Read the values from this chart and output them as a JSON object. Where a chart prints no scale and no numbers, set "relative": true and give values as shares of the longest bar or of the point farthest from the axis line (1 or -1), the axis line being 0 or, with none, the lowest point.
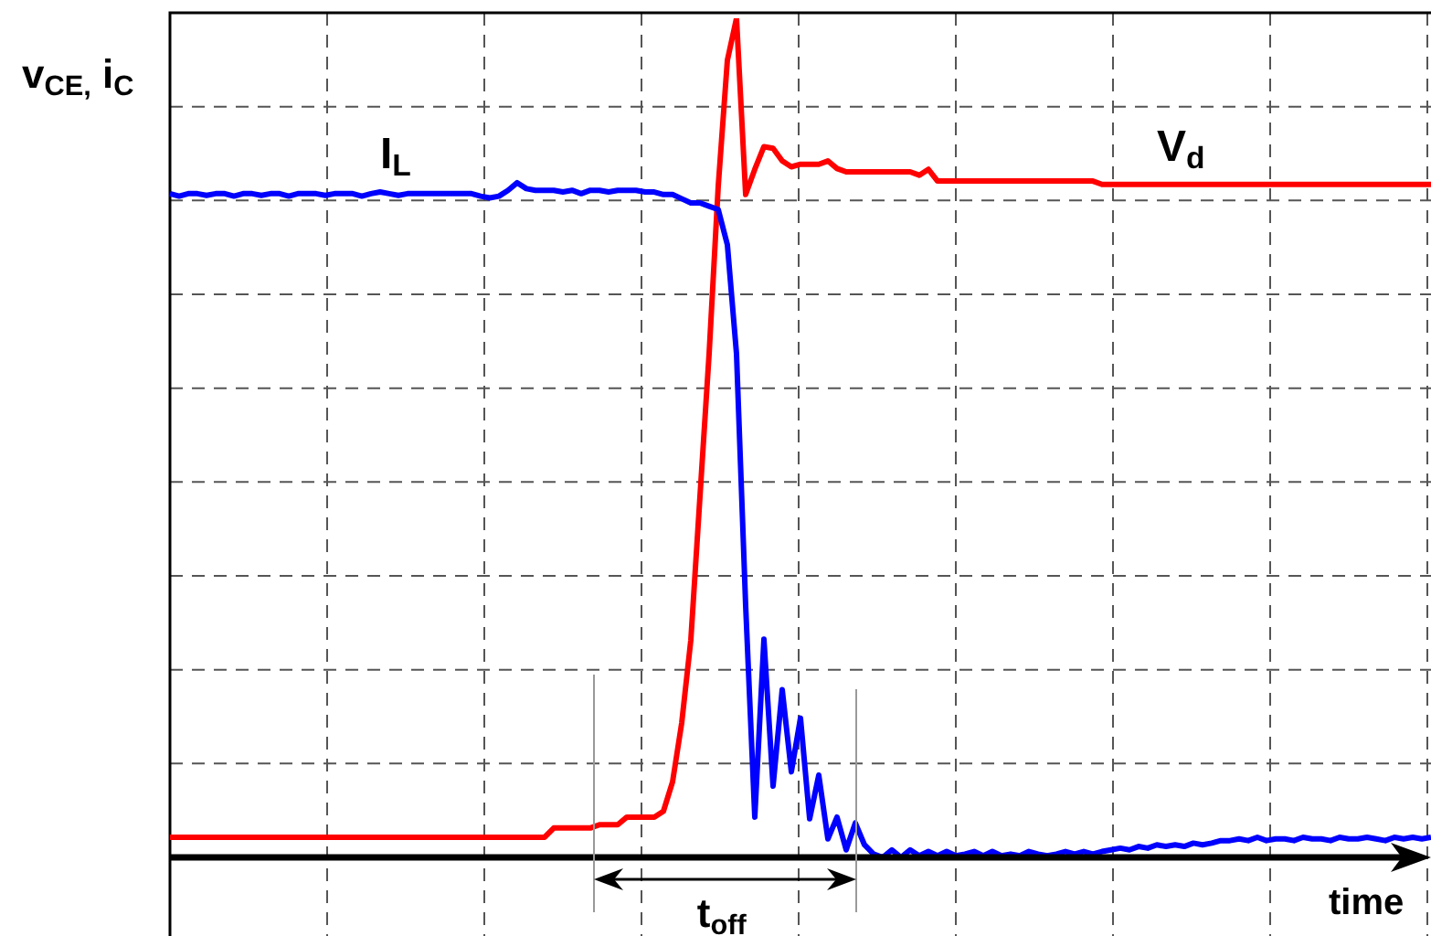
{
  "chart_data": {
    "type": "line",
    "relative": true,
    "grid": true,
    "tick_labels": false,
    "legend": false,
    "marker": "none",
    "ylabel": "v$_{CE,}$ i$_{C}$",
    "xlabel": "time",
    "annotations": [
      "t$_{off}$"
    ],
    "categories": [
      null,
      null,
      null,
      null,
      null,
      null,
      null,
      null,
      null,
      null,
      null,
      null,
      null,
      null,
      null,
      null,
      null,
      null,
      null,
      null,
      null,
      null,
      null,
      null,
      null,
      null,
      null,
      null,
      null,
      null,
      null,
      null,
      null,
      null,
      null,
      null,
      null,
      null,
      null,
      null,
      null,
      null,
      null,
      null,
      null,
      null,
      null,
      null,
      null,
      null,
      null,
      null,
      null,
      null,
      null,
      null,
      null,
      null,
      null,
      null,
      null,
      null,
      null,
      null,
      null,
      null,
      null,
      null,
      null,
      null,
      null,
      null,
      null,
      null,
      null,
      null,
      null,
      null,
      null,
      null,
      null,
      null,
      null,
      null,
      null,
      null,
      null,
      null,
      null,
      null,
      null,
      null,
      null,
      null,
      null,
      null,
      null,
      null,
      null,
      null,
      null,
      null,
      null,
      null,
      null,
      null,
      null,
      null,
      null,
      null,
      null,
      null,
      null,
      null,
      null,
      null,
      null,
      null,
      null,
      null,
      null,
      null,
      null,
      null,
      null,
      null,
      null,
      null,
      null,
      null,
      null,
      null,
      null,
      null,
      null,
      null,
      null,
      null,
      null
    ],
    "series": [
      {
        "name": "I$_{L}$",
        "color": "#0000ff",
        "values": [
          0.791,
          0.788,
          0.791,
          0.791,
          0.789,
          0.791,
          0.791,
          0.788,
          0.791,
          0.791,
          0.789,
          0.791,
          0.791,
          0.788,
          0.791,
          0.791,
          0.791,
          0.789,
          0.791,
          0.791,
          0.791,
          0.788,
          0.791,
          0.793,
          0.791,
          0.789,
          0.791,
          0.791,
          0.791,
          0.791,
          0.791,
          0.791,
          0.791,
          0.791,
          0.788,
          0.786,
          0.788,
          0.795,
          0.804,
          0.797,
          0.795,
          0.795,
          0.795,
          0.793,
          0.795,
          0.791,
          0.795,
          0.795,
          0.793,
          0.795,
          0.795,
          0.795,
          0.793,
          0.793,
          0.79,
          0.79,
          0.785,
          0.78,
          0.78,
          0.776,
          0.772,
          0.73,
          0.6,
          0.3,
          0.048,
          0.26,
          0.085,
          0.2,
          0.102,
          0.166,
          0.046,
          0.098,
          0.022,
          0.048,
          0.009,
          0.041,
          0.015,
          0.004,
          0,
          0.009,
          0,
          0.009,
          0.002,
          0.007,
          0.002,
          0.007,
          0.002,
          0.004,
          0.007,
          0.002,
          0.007,
          0.002,
          0.004,
          0.002,
          0.007,
          0.004,
          0.002,
          0.004,
          0.007,
          0.004,
          0.007,
          0.004,
          0.007,
          0.009,
          0.011,
          0.009,
          0.013,
          0.011,
          0.015,
          0.013,
          0.015,
          0.013,
          0.017,
          0.015,
          0.017,
          0.02,
          0.02,
          0.022,
          0.02,
          0.024,
          0.02,
          0.022,
          0.022,
          0.02,
          0.024,
          0.022,
          0.022,
          0.02,
          0.024,
          0.022,
          0.022,
          0.024,
          0.022,
          0.02,
          0.024,
          0.022,
          0.024,
          0.022,
          0.024
        ]
      },
      {
        "name": "V$_{d}$",
        "color": "#ff0000",
        "values": [
          0.024,
          0.024,
          0.024,
          0.024,
          0.024,
          0.024,
          0.024,
          0.024,
          0.024,
          0.024,
          0.024,
          0.024,
          0.024,
          0.024,
          0.024,
          0.024,
          0.024,
          0.024,
          0.024,
          0.024,
          0.024,
          0.024,
          0.024,
          0.024,
          0.024,
          0.024,
          0.024,
          0.024,
          0.024,
          0.024,
          0.024,
          0.024,
          0.024,
          0.024,
          0.024,
          0.024,
          0.024,
          0.024,
          0.024,
          0.024,
          0.024,
          0.024,
          0.035,
          0.035,
          0.035,
          0.035,
          0.035,
          0.039,
          0.039,
          0.039,
          0.048,
          0.048,
          0.048,
          0.048,
          0.055,
          0.09,
          0.16,
          0.259,
          0.43,
          0.6,
          0.8,
          0.95,
          1,
          0.79,
          0.82,
          0.847,
          0.845,
          0.83,
          0.823,
          0.826,
          0.826,
          0.826,
          0.83,
          0.821,
          0.817,
          0.817,
          0.817,
          0.817,
          0.817,
          0.817,
          0.817,
          0.817,
          0.813,
          0.82,
          0.806,
          0.806,
          0.806,
          0.806,
          0.806,
          0.806,
          0.806,
          0.806,
          0.806,
          0.806,
          0.806,
          0.806,
          0.806,
          0.806,
          0.806,
          0.806,
          0.806,
          0.806,
          0.802,
          0.802,
          0.802,
          0.802,
          0.802,
          0.802,
          0.802,
          0.802,
          0.802,
          0.802,
          0.802,
          0.802,
          0.802,
          0.802,
          0.802,
          0.802,
          0.802,
          0.802,
          0.802,
          0.802,
          0.802,
          0.802,
          0.802,
          0.802,
          0.802,
          0.802,
          0.802,
          0.802,
          0.802,
          0.802,
          0.802,
          0.802,
          0.802,
          0.802,
          0.802,
          0.802,
          0.802
        ]
      }
    ]
  }
}
